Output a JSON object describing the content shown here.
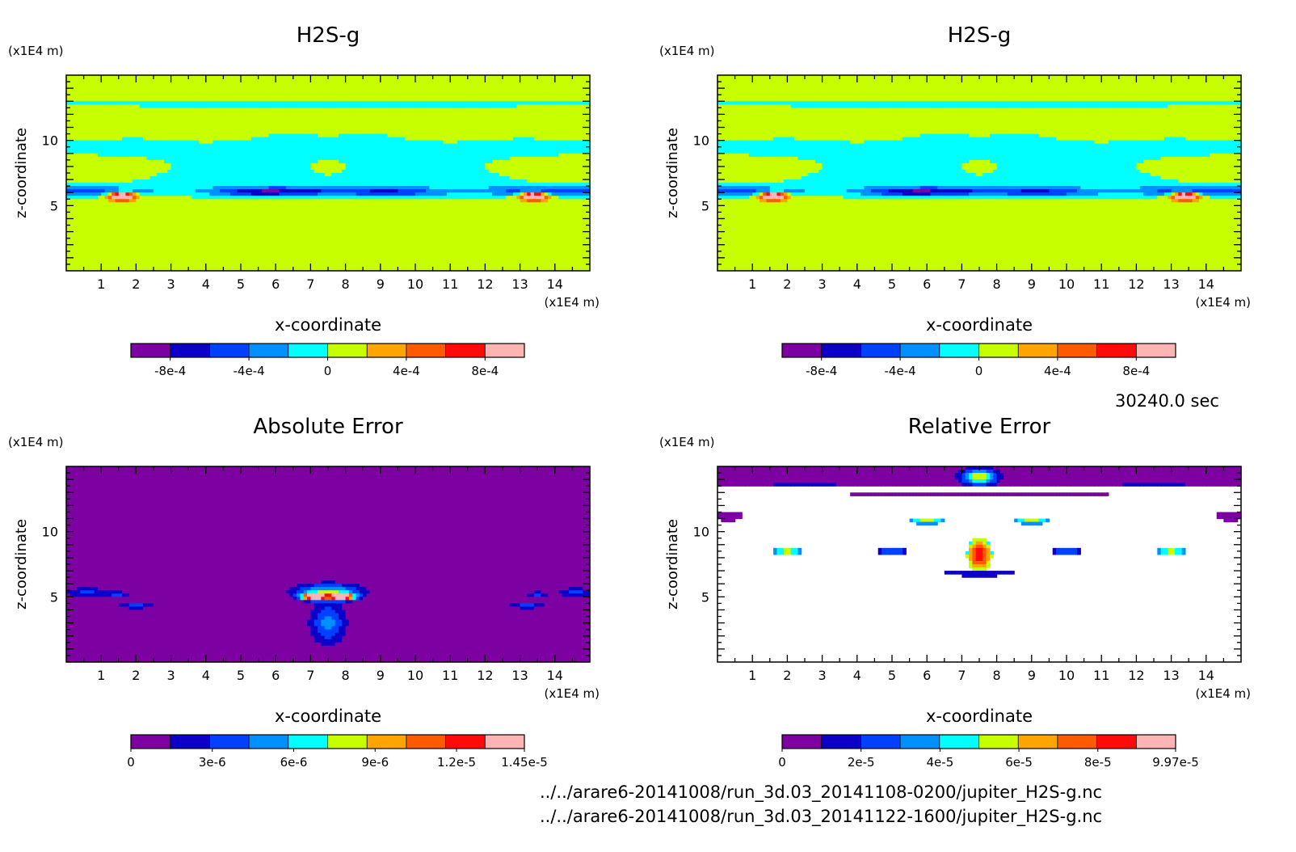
{
  "time_label": "30240.0 sec",
  "file_paths": [
    "../../arare6-20141008/run_3d.03_20141108-0200/jupiter_H2S-g.nc",
    "../../arare6-20141008/run_3d.03_20141122-1600/jupiter_H2S-g.nc"
  ],
  "palette": [
    "#7d00a3",
    "#0c00c8",
    "#0040ff",
    "#0090ff",
    "#00ffff",
    "#c8ff00",
    "#ffa500",
    "#ff5a00",
    "#ff0a0a",
    "#ffb4b4"
  ],
  "chart_data": [
    {
      "type": "heatmap",
      "title": "H2S-g",
      "xlabel": "x-coordinate",
      "ylabel": "z-coordinate",
      "x_unit": "(x1E4 m)",
      "y_unit": "(x1E4 m)",
      "xlim": [
        0,
        15
      ],
      "ylim": [
        0,
        15
      ],
      "x_ticks": [
        "1",
        "2",
        "3",
        "4",
        "5",
        "6",
        "7",
        "8",
        "9",
        "10",
        "11",
        "12",
        "13",
        "14"
      ],
      "y_ticks": [
        "5",
        "10"
      ],
      "colorbar_ticks": [
        "-8e-4",
        "-4e-4",
        "0",
        "4e-4",
        "8e-4"
      ],
      "colorbar_range": [
        -0.001,
        0.001
      ]
    },
    {
      "type": "heatmap",
      "title": "H2S-g",
      "xlabel": "x-coordinate",
      "ylabel": "z-coordinate",
      "x_unit": "(x1E4 m)",
      "y_unit": "(x1E4 m)",
      "xlim": [
        0,
        15
      ],
      "ylim": [
        0,
        15
      ],
      "x_ticks": [
        "1",
        "2",
        "3",
        "4",
        "5",
        "6",
        "7",
        "8",
        "9",
        "10",
        "11",
        "12",
        "13",
        "14"
      ],
      "y_ticks": [
        "5",
        "10"
      ],
      "colorbar_ticks": [
        "-8e-4",
        "-4e-4",
        "0",
        "4e-4",
        "8e-4"
      ],
      "colorbar_range": [
        -0.001,
        0.001
      ]
    },
    {
      "type": "heatmap",
      "title": "Absolute Error",
      "xlabel": "x-coordinate",
      "ylabel": "z-coordinate",
      "x_unit": "(x1E4 m)",
      "y_unit": "(x1E4 m)",
      "xlim": [
        0,
        15
      ],
      "ylim": [
        0,
        15
      ],
      "x_ticks": [
        "1",
        "2",
        "3",
        "4",
        "5",
        "6",
        "7",
        "8",
        "9",
        "10",
        "11",
        "12",
        "13",
        "14"
      ],
      "y_ticks": [
        "5",
        "10"
      ],
      "colorbar_ticks": [
        "0",
        "3e-6",
        "6e-6",
        "9e-6",
        "1.2e-5",
        "1.45e-5"
      ],
      "colorbar_range": [
        0,
        1.45e-05
      ]
    },
    {
      "type": "heatmap",
      "title": "Relative Error",
      "xlabel": "x-coordinate",
      "ylabel": "z-coordinate",
      "x_unit": "(x1E4 m)",
      "y_unit": "(x1E4 m)",
      "xlim": [
        0,
        15
      ],
      "ylim": [
        0,
        15
      ],
      "x_ticks": [
        "1",
        "2",
        "3",
        "4",
        "5",
        "6",
        "7",
        "8",
        "9",
        "10",
        "11",
        "12",
        "13",
        "14"
      ],
      "y_ticks": [
        "5",
        "10"
      ],
      "colorbar_ticks": [
        "0",
        "2e-5",
        "4e-5",
        "6e-5",
        "8e-5",
        "9.97e-5"
      ],
      "colorbar_range": [
        0,
        9.97e-05
      ]
    }
  ]
}
